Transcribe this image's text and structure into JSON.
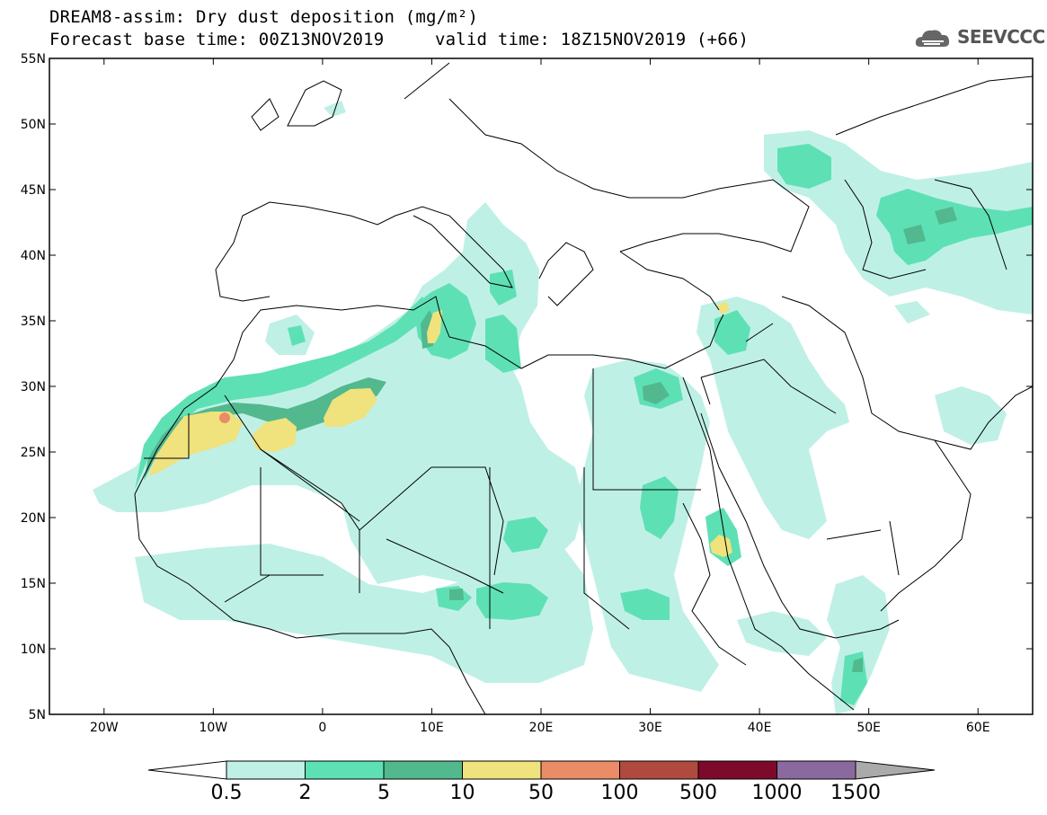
{
  "header": {
    "title_line1": "DREAM8-assim: Dry dust deposition (mg/m²)",
    "title_line2_left": "Forecast base time: 00Z13NOV2019",
    "title_line2_right": "valid time: 18Z15NOV2019 (+66)",
    "logo_text": "SEEVCCC"
  },
  "map": {
    "lon_range": [
      -25,
      65
    ],
    "lat_range": [
      5,
      55
    ],
    "lat_ticks": [
      {
        "value": 55,
        "label": "55N"
      },
      {
        "value": 50,
        "label": "50N"
      },
      {
        "value": 45,
        "label": "45N"
      },
      {
        "value": 40,
        "label": "40N"
      },
      {
        "value": 35,
        "label": "35N"
      },
      {
        "value": 30,
        "label": "30N"
      },
      {
        "value": 25,
        "label": "25N"
      },
      {
        "value": 20,
        "label": "20N"
      },
      {
        "value": 15,
        "label": "15N"
      },
      {
        "value": 10,
        "label": "10N"
      },
      {
        "value": 5,
        "label": "5N"
      }
    ],
    "lon_ticks": [
      {
        "value": -20,
        "label": "20W"
      },
      {
        "value": -10,
        "label": "10W"
      },
      {
        "value": 0,
        "label": "0"
      },
      {
        "value": 10,
        "label": "10E"
      },
      {
        "value": 20,
        "label": "20E"
      },
      {
        "value": 30,
        "label": "30E"
      },
      {
        "value": 40,
        "label": "40E"
      },
      {
        "value": 50,
        "label": "50E"
      },
      {
        "value": 60,
        "label": "60E"
      }
    ]
  },
  "colorbar": {
    "labels": [
      "0.5",
      "2",
      "5",
      "10",
      "50",
      "100",
      "500",
      "1000",
      "1500"
    ],
    "colors": [
      "#bff0e6",
      "#5ee0b5",
      "#52b88e",
      "#f0e27c",
      "#ea8c68",
      "#b04a3e",
      "#7d0a2a",
      "#8a6a9e",
      "#aaaaaa"
    ]
  }
}
